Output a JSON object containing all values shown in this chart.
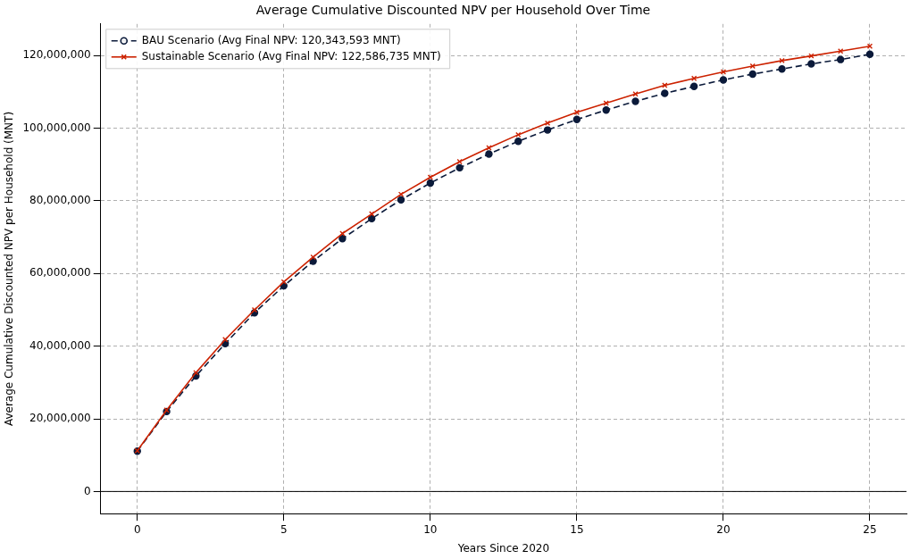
{
  "chart_data": {
    "type": "line",
    "title": "Average Cumulative Discounted NPV per Household Over Time",
    "xlabel": "Years Since 2020",
    "ylabel": "Average Cumulative Discounted NPV per Household (MNT)",
    "x": [
      0,
      1,
      2,
      3,
      4,
      5,
      6,
      7,
      8,
      9,
      10,
      11,
      12,
      13,
      14,
      15,
      16,
      17,
      18,
      19,
      20,
      21,
      22,
      23,
      24,
      25
    ],
    "series": [
      {
        "name": "BAU Scenario (Avg Final NPV: 120,343,593 MNT)",
        "color": "#0b1a3a",
        "marker": "circle",
        "line_style": "dashed",
        "values": [
          11100000,
          22000000,
          31800000,
          40700000,
          49200000,
          56600000,
          63400000,
          69600000,
          75100000,
          80300000,
          84900000,
          89100000,
          92900000,
          96400000,
          99500000,
          102400000,
          105000000,
          107400000,
          109600000,
          111500000,
          113300000,
          114900000,
          116300000,
          117700000,
          118900000,
          120343593
        ]
      },
      {
        "name": "Sustainable Scenario (Avg Final NPV: 122,586,735 MNT)",
        "color": "#cc2200",
        "marker": "cross",
        "line_style": "solid",
        "values": [
          11200000,
          22400000,
          32700000,
          41800000,
          50000000,
          57700000,
          64500000,
          71000000,
          76400000,
          81800000,
          86500000,
          90800000,
          94600000,
          98200000,
          101400000,
          104400000,
          106900000,
          109400000,
          111800000,
          113700000,
          115500000,
          117100000,
          118600000,
          119900000,
          121200000,
          122586735
        ]
      }
    ],
    "xlim": [
      -1.25,
      26.25
    ],
    "xticks": [
      0,
      5,
      10,
      15,
      20,
      25
    ],
    "ylim": [
      -6100000,
      128700000
    ],
    "yticks": [
      {
        "value": 0,
        "label": "0"
      },
      {
        "value": 20000000,
        "label": "20,000,000"
      },
      {
        "value": 40000000,
        "label": "40,000,000"
      },
      {
        "value": 60000000,
        "label": "60,000,000"
      },
      {
        "value": 80000000,
        "label": "80,000,000"
      },
      {
        "value": 100000000,
        "label": "100,000,000"
      },
      {
        "value": 120000000,
        "label": "120,000,000"
      }
    ],
    "ref_lines": [
      {
        "axis": "y",
        "value": 0,
        "color": "#000000",
        "line_style": "solid"
      }
    ],
    "grid": true,
    "legend": "top left"
  }
}
